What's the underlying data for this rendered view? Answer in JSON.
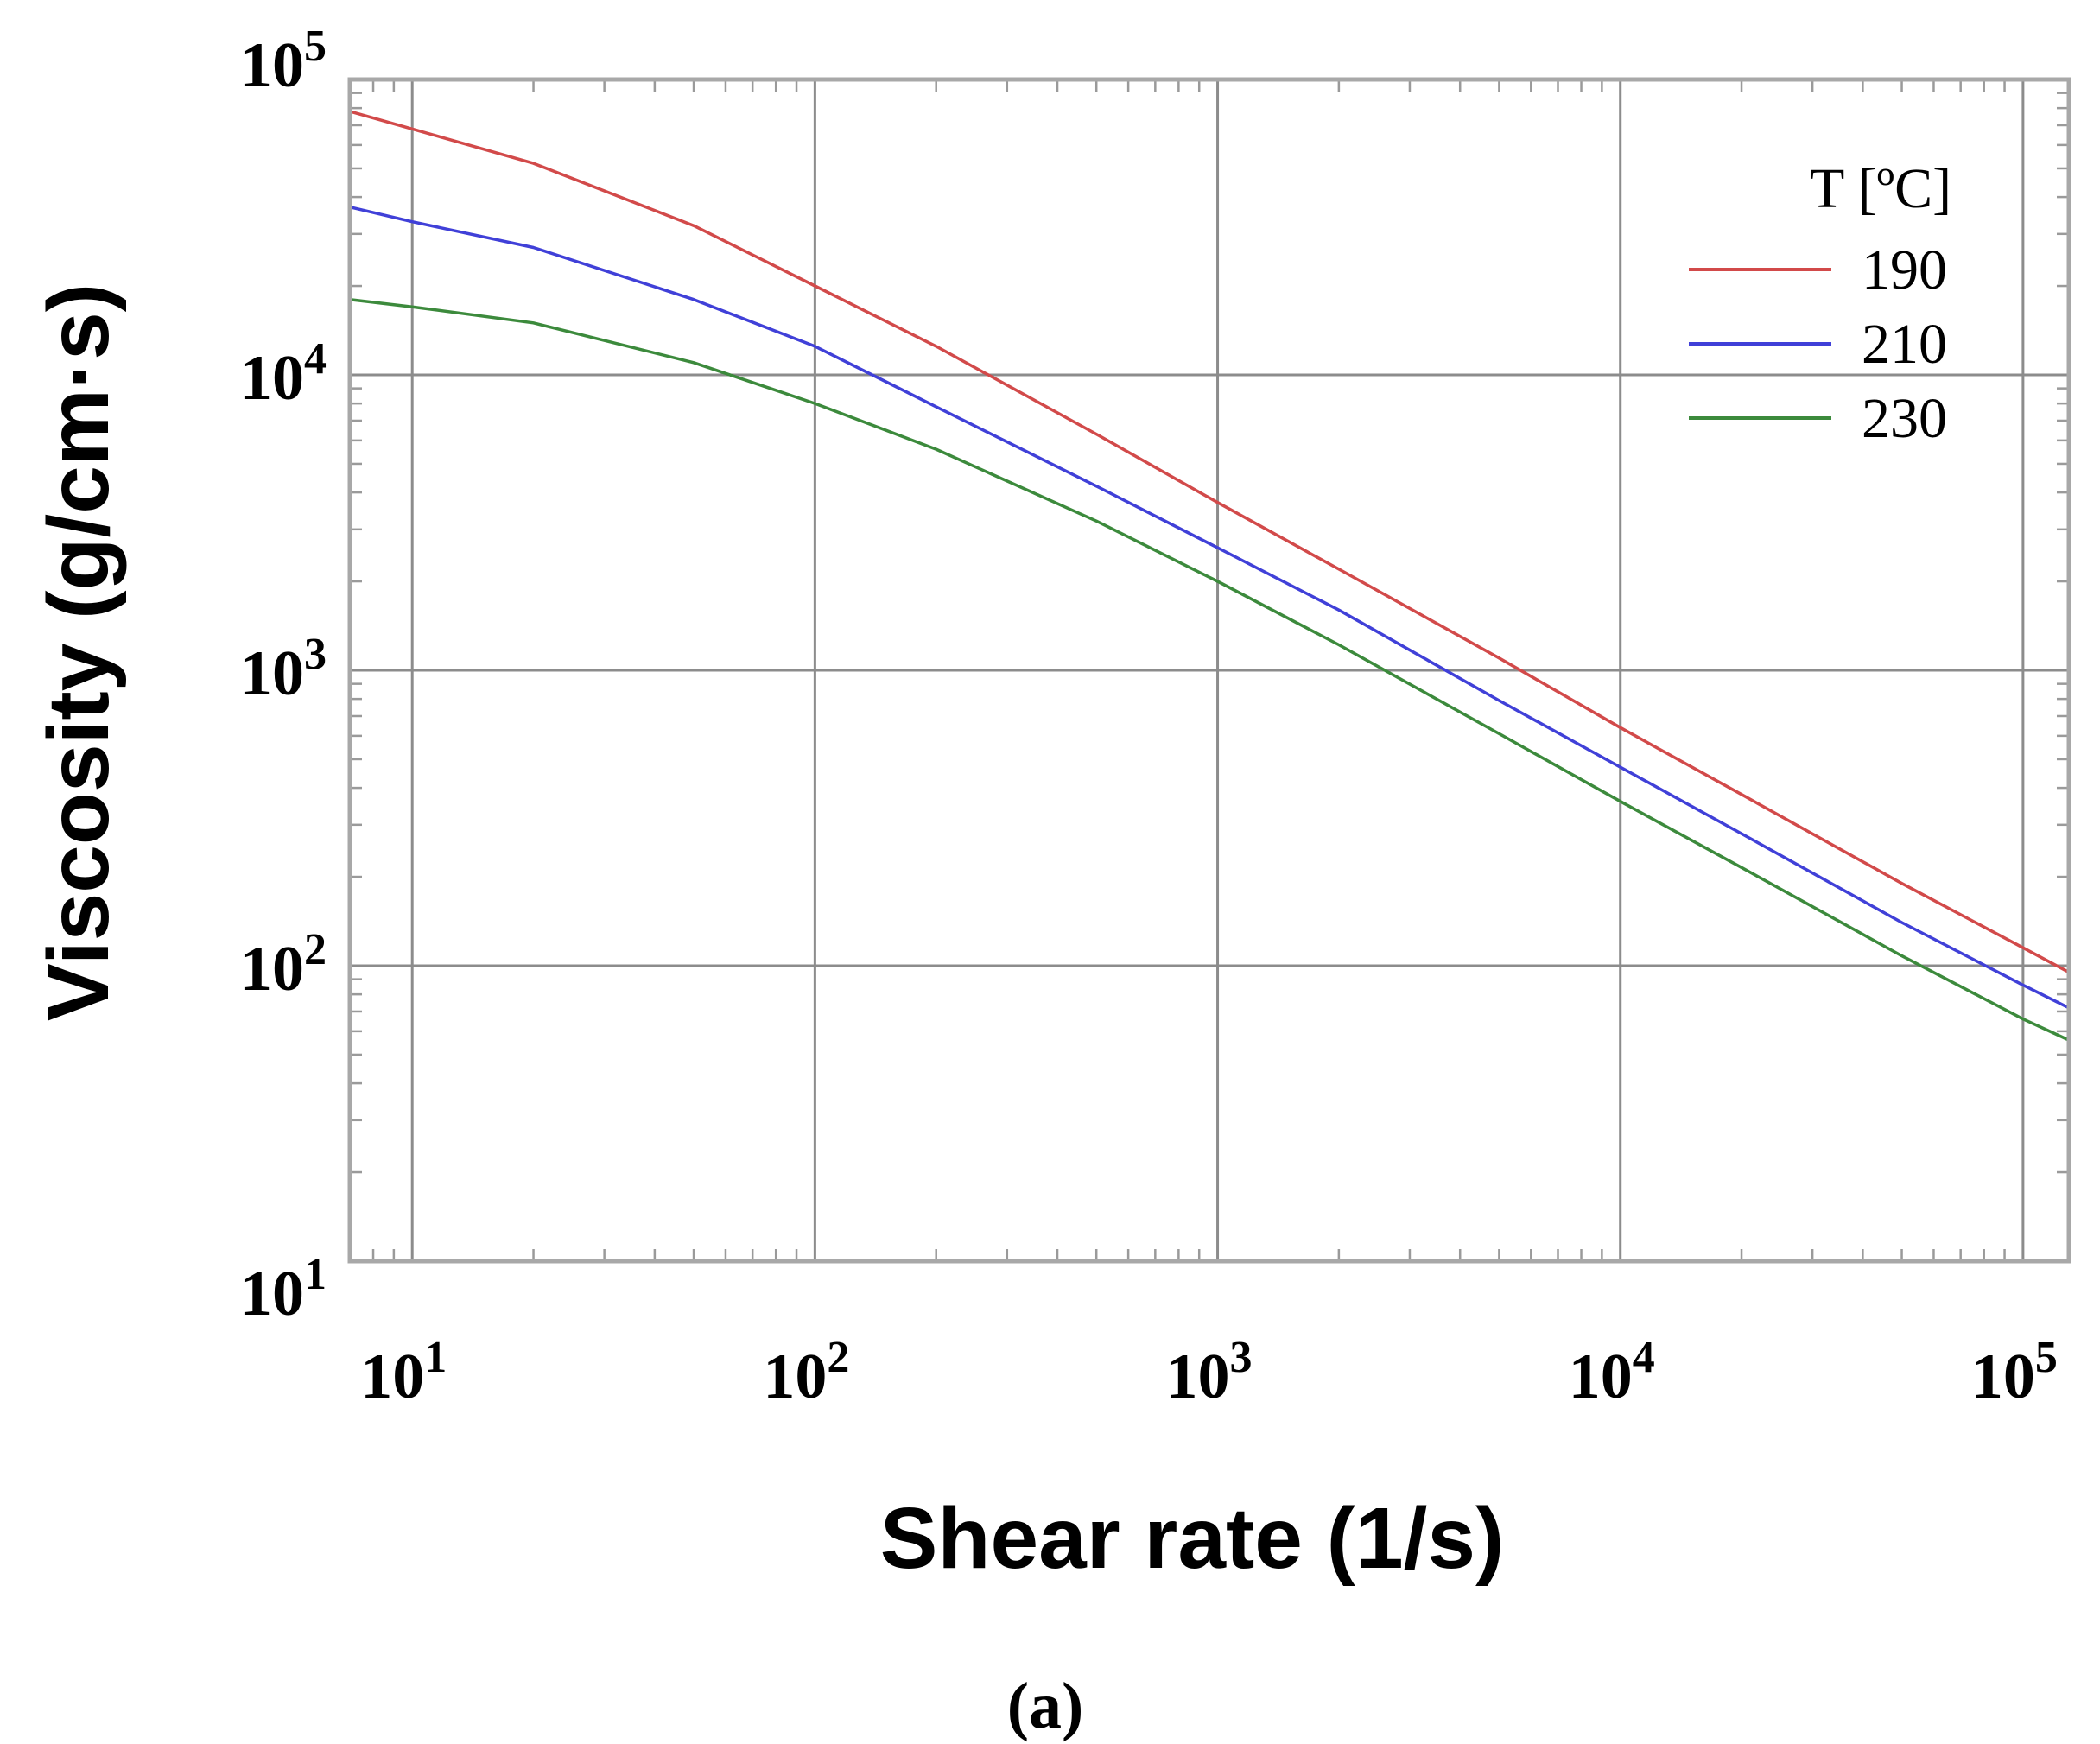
{
  "chart_data": {
    "type": "line",
    "scale": "log-log",
    "xlabel": "Shear rate (1/s)",
    "ylabel": "Viscosity (g/cm·s)",
    "xlim": [
      7,
      130000
    ],
    "ylim": [
      10,
      100000
    ],
    "grid": true,
    "x_ticks": [
      {
        "value": 10,
        "base": "10",
        "exp": "1"
      },
      {
        "value": 100,
        "base": "10",
        "exp": "2"
      },
      {
        "value": 1000,
        "base": "10",
        "exp": "3"
      },
      {
        "value": 10000,
        "base": "10",
        "exp": "4"
      },
      {
        "value": 100000,
        "base": "10",
        "exp": "5"
      }
    ],
    "y_ticks": [
      {
        "value": 10,
        "base": "10",
        "exp": "1"
      },
      {
        "value": 100,
        "base": "10",
        "exp": "2"
      },
      {
        "value": 1000,
        "base": "10",
        "exp": "3"
      },
      {
        "value": 10000,
        "base": "10",
        "exp": "4"
      },
      {
        "value": 100000,
        "base": "10",
        "exp": "5"
      }
    ],
    "legend": {
      "title": "T [ºC]",
      "position": "top-right"
    },
    "series": [
      {
        "name": "190",
        "color": "#d24a4a",
        "x": [
          7,
          10,
          20,
          50,
          100,
          200,
          500,
          1000,
          2000,
          5000,
          10000,
          20000,
          50000,
          100000,
          130000
        ],
        "y": [
          78000,
          68000,
          52000,
          32000,
          20000,
          12500,
          6300,
          3700,
          2200,
          1100,
          640,
          380,
          190,
          115,
          95
        ]
      },
      {
        "name": "210",
        "color": "#4040d8",
        "x": [
          7,
          10,
          20,
          50,
          100,
          200,
          500,
          1000,
          2000,
          5000,
          10000,
          20000,
          50000,
          100000,
          130000
        ],
        "y": [
          37000,
          33000,
          27000,
          18000,
          12500,
          7800,
          4200,
          2600,
          1600,
          790,
          470,
          280,
          140,
          86,
          72
        ]
      },
      {
        "name": "230",
        "color": "#3c8a3c",
        "x": [
          7,
          10,
          20,
          50,
          100,
          200,
          500,
          1000,
          2000,
          5000,
          10000,
          20000,
          50000,
          100000,
          130000
        ],
        "y": [
          18000,
          17000,
          15000,
          11000,
          8000,
          5600,
          3200,
          2000,
          1220,
          610,
          360,
          215,
          108,
          66,
          56
        ]
      }
    ],
    "caption": "(a)"
  }
}
